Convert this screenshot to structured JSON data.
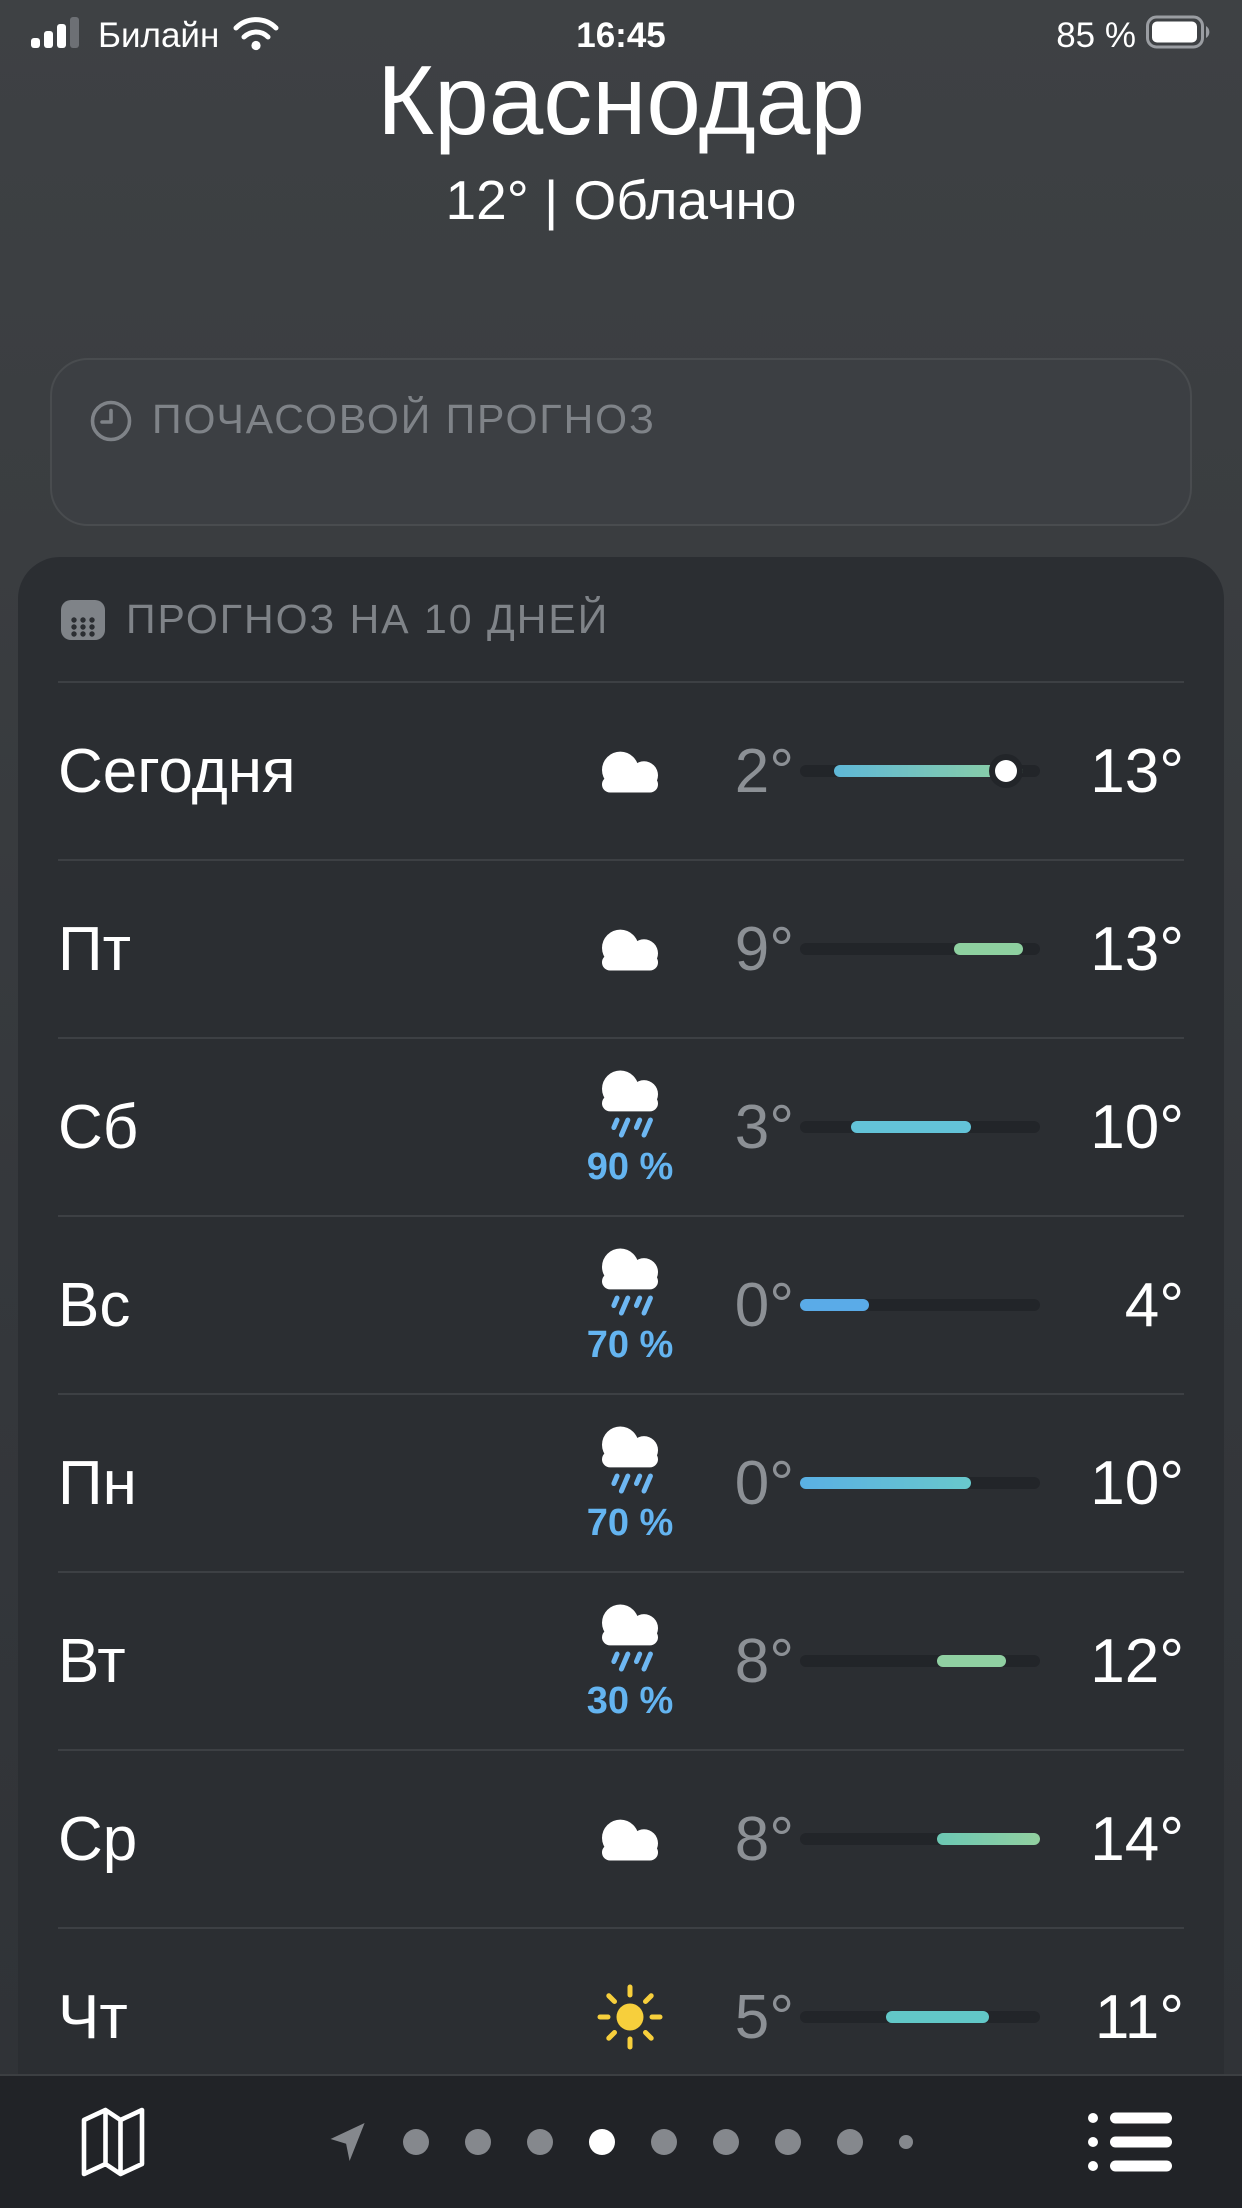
{
  "status_bar": {
    "carrier": "Билайн",
    "time": "16:45",
    "battery": "85 %"
  },
  "header": {
    "city": "Краснодар",
    "summary": "12° | Облачно"
  },
  "hourly_card": {
    "icon": "clock-icon",
    "label": "ПОЧАСОВОЙ ПРОГНОЗ"
  },
  "ten_day": {
    "icon": "calendar-icon",
    "label": "ПРОГНОЗ НА 10 ДНЕЙ",
    "temp_scale_min": 0,
    "temp_scale_max": 14,
    "current_temp": 12,
    "colors": {
      "precip_text": "#64b4f0",
      "bar_track": "#222529",
      "low_text": "#8c9095",
      "high_text": "#ffffff"
    },
    "days": [
      {
        "label": "Сегодня",
        "icon": "cloudy",
        "precip": null,
        "low": 2,
        "high": 13,
        "low_text": "2°",
        "high_text": "13°",
        "bar_colors": [
          "#5fb8d8",
          "#8ed0a0"
        ],
        "current_dot": true
      },
      {
        "label": "Пт",
        "icon": "cloudy",
        "precip": null,
        "low": 9,
        "high": 13,
        "low_text": "9°",
        "high_text": "13°",
        "bar_colors": [
          "#8ed0a0",
          "#8ed0a0"
        ],
        "current_dot": false
      },
      {
        "label": "Сб",
        "icon": "rain",
        "precip": "90 %",
        "low": 3,
        "high": 10,
        "low_text": "3°",
        "high_text": "10°",
        "bar_colors": [
          "#63c3d8",
          "#63c3d8"
        ],
        "current_dot": false
      },
      {
        "label": "Вс",
        "icon": "rain",
        "precip": "70 %",
        "low": 0,
        "high": 4,
        "low_text": "0°",
        "high_text": "4°",
        "bar_colors": [
          "#5aabe8",
          "#5aabe8"
        ],
        "current_dot": false
      },
      {
        "label": "Пн",
        "icon": "rain",
        "precip": "70 %",
        "low": 0,
        "high": 10,
        "low_text": "0°",
        "high_text": "10°",
        "bar_colors": [
          "#5ab0e4",
          "#68c8cc"
        ],
        "current_dot": false
      },
      {
        "label": "Вт",
        "icon": "rain",
        "precip": "30 %",
        "low": 8,
        "high": 12,
        "low_text": "8°",
        "high_text": "12°",
        "bar_colors": [
          "#90d0a2",
          "#90d0a2"
        ],
        "current_dot": false
      },
      {
        "label": "Ср",
        "icon": "cloudy",
        "precip": null,
        "low": 8,
        "high": 14,
        "low_text": "8°",
        "high_text": "14°",
        "bar_colors": [
          "#6cc8b4",
          "#92d0a0"
        ],
        "current_dot": false
      },
      {
        "label": "Чт",
        "icon": "sunny",
        "precip": null,
        "low": 5,
        "high": 11,
        "low_text": "5°",
        "high_text": "11°",
        "bar_colors": [
          "#62c8c8",
          "#62c8c8"
        ],
        "current_dot": false
      }
    ]
  },
  "toolbar": {
    "map_icon": "map-icon",
    "location_icon": "location-arrow-icon",
    "list_icon": "list-icon",
    "page_dots": [
      "dot",
      "dot",
      "dot",
      "active",
      "dot",
      "dot",
      "dot",
      "dot",
      "small"
    ]
  }
}
